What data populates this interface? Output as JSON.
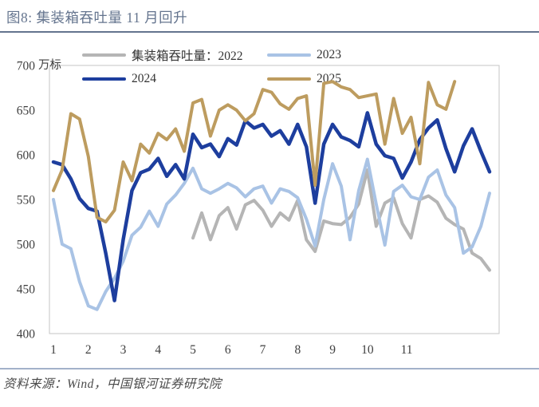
{
  "page": {
    "title": "图8: 集装箱吞吐量 11 月回升",
    "footer_source": "资料来源：Wind，中国银河证券研究院"
  },
  "chart_data": {
    "type": "line",
    "unit_label": "万标",
    "y_axis": {
      "min": 400,
      "max": 700,
      "step": 50,
      "ticks": [
        "400",
        "450",
        "500",
        "550",
        "600",
        "650",
        "700"
      ]
    },
    "x_axis": {
      "labels": [
        {
          "label": "1",
          "week": 1
        },
        {
          "label": "2",
          "week": 5
        },
        {
          "label": "3",
          "week": 9
        },
        {
          "label": "4",
          "week": 13
        },
        {
          "label": "5",
          "week": 17
        },
        {
          "label": "6",
          "week": 21
        },
        {
          "label": "7",
          "week": 25
        },
        {
          "label": "8",
          "week": 29
        },
        {
          "label": "9",
          "week": 33
        },
        {
          "label": "10",
          "week": 37
        },
        {
          "label": "11",
          "week": 41.5
        }
      ]
    },
    "legend_position": "top",
    "grid": false,
    "series": [
      {
        "name": "2022",
        "legend_label": "集装箱吞吐量：2022",
        "color": "#b5b5b5",
        "values": [
          null,
          null,
          null,
          null,
          null,
          null,
          null,
          null,
          null,
          null,
          null,
          null,
          null,
          null,
          null,
          null,
          507,
          535,
          505,
          532,
          541,
          517,
          544,
          549,
          538,
          520,
          535,
          527,
          549,
          505,
          492,
          526,
          523,
          522,
          530,
          545,
          583,
          520,
          546,
          552,
          523,
          507,
          550,
          554,
          547,
          529,
          522,
          517,
          490,
          484,
          471
        ]
      },
      {
        "name": "2023",
        "legend_label": "2023",
        "color": "#a9c3e5",
        "values": [
          550,
          500,
          495,
          458,
          431,
          427,
          447,
          462,
          481,
          510,
          519,
          537,
          520,
          545,
          555,
          568,
          585,
          562,
          557,
          562,
          568,
          563,
          553,
          562,
          565,
          546,
          562,
          559,
          552,
          528,
          498,
          550,
          590,
          565,
          505,
          560,
          595,
          545,
          499,
          559,
          566,
          553,
          550,
          575,
          583,
          555,
          541,
          490,
          497,
          520,
          557
        ]
      },
      {
        "name": "2024",
        "legend_label": "2024",
        "color": "#1d3e9e",
        "values": [
          592,
          589,
          573,
          551,
          540,
          537,
          490,
          437,
          505,
          560,
          580,
          584,
          596,
          576,
          589,
          573,
          623,
          608,
          612,
          598,
          618,
          611,
          638,
          630,
          634,
          621,
          627,
          612,
          634,
          609,
          546,
          612,
          634,
          620,
          616,
          609,
          647,
          612,
          599,
          596,
          574,
          592,
          617,
          630,
          639,
          607,
          581,
          610,
          629,
          604,
          581
        ]
      },
      {
        "name": "2025",
        "legend_label": "2025",
        "color": "#bd9c5f",
        "values": [
          560,
          583,
          646,
          640,
          598,
          530,
          525,
          538,
          592,
          571,
          612,
          602,
          624,
          617,
          629,
          604,
          658,
          662,
          621,
          650,
          656,
          650,
          638,
          646,
          673,
          670,
          657,
          651,
          663,
          666,
          566,
          680,
          682,
          676,
          673,
          664,
          666,
          668,
          612,
          663,
          624,
          642,
          590,
          681,
          656,
          651,
          682
        ]
      }
    ]
  }
}
